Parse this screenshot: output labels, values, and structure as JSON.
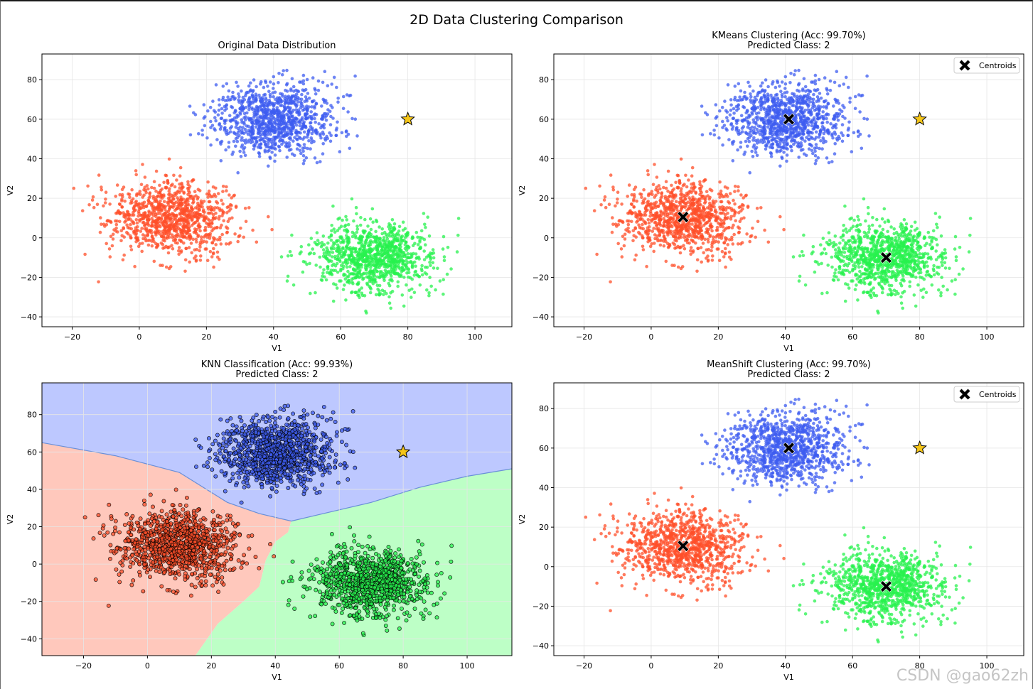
{
  "figure": {
    "suptitle": "2D Data Clustering Comparison",
    "watermark": "CSDN @gao62zh"
  },
  "style": {
    "class_colors": [
      "#3d5cf0",
      "#ff4f2a",
      "#27f24e"
    ],
    "region_colors": [
      "#bdc8ff",
      "#ffc8bc",
      "#bdffc6"
    ],
    "region_edge_color": "#6a8fd8",
    "star_color": "#f5c518",
    "centroid_color": "#000000",
    "grid_color": "#e6e6e6"
  },
  "chart_data": [
    {
      "type": "scatter",
      "title": "Original Data Distribution",
      "xlabel": "V1",
      "ylabel": "V2",
      "xlim": [
        -29,
        111
      ],
      "ylim": [
        -45,
        93
      ],
      "xticks": [
        -20,
        0,
        20,
        40,
        60,
        80,
        100
      ],
      "yticks": [
        -40,
        -20,
        0,
        20,
        40,
        60,
        80
      ],
      "grid": true,
      "series": [
        {
          "class": 0,
          "center": [
            40,
            60
          ],
          "spread": [
            9,
            9
          ],
          "count": 1000
        },
        {
          "class": 1,
          "center": [
            10,
            10
          ],
          "spread": [
            9,
            9
          ],
          "count": 1000
        },
        {
          "class": 2,
          "center": [
            70,
            -10
          ],
          "spread": [
            9,
            9
          ],
          "count": 1000
        }
      ],
      "new_point": {
        "x": 80,
        "y": 60,
        "marker": "star"
      }
    },
    {
      "type": "scatter",
      "title_lines": [
        "KMeans Clustering (Acc: 99.70%)",
        "Predicted Class: 2"
      ],
      "xlabel": "V1",
      "ylabel": "V2",
      "xlim": [
        -29,
        111
      ],
      "ylim": [
        -45,
        93
      ],
      "xticks": [
        -20,
        0,
        20,
        40,
        60,
        80,
        100
      ],
      "yticks": [
        -40,
        -20,
        0,
        20,
        40,
        60,
        80
      ],
      "grid": true,
      "legend": {
        "position": "top-right",
        "entries": [
          "Centroids"
        ]
      },
      "series": [
        {
          "class": 0,
          "center": [
            40,
            60
          ],
          "spread": [
            9,
            9
          ],
          "count": 1000
        },
        {
          "class": 1,
          "center": [
            10,
            10
          ],
          "spread": [
            9,
            9
          ],
          "count": 1000
        },
        {
          "class": 2,
          "center": [
            70,
            -10
          ],
          "spread": [
            9,
            9
          ],
          "count": 1000
        }
      ],
      "centroids": [
        [
          41,
          60
        ],
        [
          9.5,
          10.5
        ],
        [
          70,
          -10
        ]
      ],
      "new_point": {
        "x": 80,
        "y": 60,
        "marker": "star"
      }
    },
    {
      "type": "scatter",
      "title_lines": [
        "KNN Classification (Acc: 99.93%)",
        "Predicted Class: 2"
      ],
      "xlabel": "V1",
      "ylabel": "V2",
      "xlim": [
        -33,
        114
      ],
      "ylim": [
        -49,
        97
      ],
      "xticks": [
        -20,
        0,
        20,
        40,
        60,
        80,
        100
      ],
      "yticks": [
        -40,
        -20,
        0,
        20,
        40,
        60,
        80
      ],
      "grid": true,
      "decision_regions": true,
      "boundary_0_upper": [
        [
          -33,
          65
        ],
        [
          -10,
          58
        ],
        [
          10,
          49
        ],
        [
          25,
          33
        ],
        [
          35,
          27
        ],
        [
          45,
          23
        ],
        [
          55,
          27
        ],
        [
          70,
          33
        ],
        [
          85,
          41
        ],
        [
          100,
          47
        ],
        [
          114,
          51
        ]
      ],
      "boundary_1_2": [
        [
          45,
          23
        ],
        [
          44,
          17
        ],
        [
          40,
          12
        ],
        [
          37,
          2
        ],
        [
          35,
          -12
        ],
        [
          30,
          -20
        ],
        [
          22,
          -32
        ],
        [
          15,
          -49
        ]
      ],
      "series": [
        {
          "class": 0,
          "center": [
            40,
            60
          ],
          "spread": [
            9,
            9
          ],
          "count": 1000
        },
        {
          "class": 1,
          "center": [
            10,
            10
          ],
          "spread": [
            9,
            9
          ],
          "count": 1000
        },
        {
          "class": 2,
          "center": [
            70,
            -10
          ],
          "spread": [
            9,
            9
          ],
          "count": 1000
        }
      ],
      "new_point": {
        "x": 80,
        "y": 60,
        "marker": "star"
      }
    },
    {
      "type": "scatter",
      "title_lines": [
        "MeanShift Clustering (Acc: 99.70%)",
        "Predicted Class: 2"
      ],
      "xlabel": "V1",
      "ylabel": "V2",
      "xlim": [
        -29,
        111
      ],
      "ylim": [
        -45,
        93
      ],
      "xticks": [
        -20,
        0,
        20,
        40,
        60,
        80,
        100
      ],
      "yticks": [
        -40,
        -20,
        0,
        20,
        40,
        60,
        80
      ],
      "grid": true,
      "legend": {
        "position": "top-right",
        "entries": [
          "Centroids"
        ]
      },
      "series": [
        {
          "class": 0,
          "center": [
            40,
            60
          ],
          "spread": [
            9,
            9
          ],
          "count": 1000
        },
        {
          "class": 1,
          "center": [
            10,
            10
          ],
          "spread": [
            9,
            9
          ],
          "count": 1000
        },
        {
          "class": 2,
          "center": [
            70,
            -10
          ],
          "spread": [
            9,
            9
          ],
          "count": 1000
        }
      ],
      "centroids": [
        [
          41,
          60
        ],
        [
          9.5,
          10.5
        ],
        [
          70,
          -10
        ]
      ],
      "new_point": {
        "x": 80,
        "y": 60,
        "marker": "star"
      }
    }
  ]
}
